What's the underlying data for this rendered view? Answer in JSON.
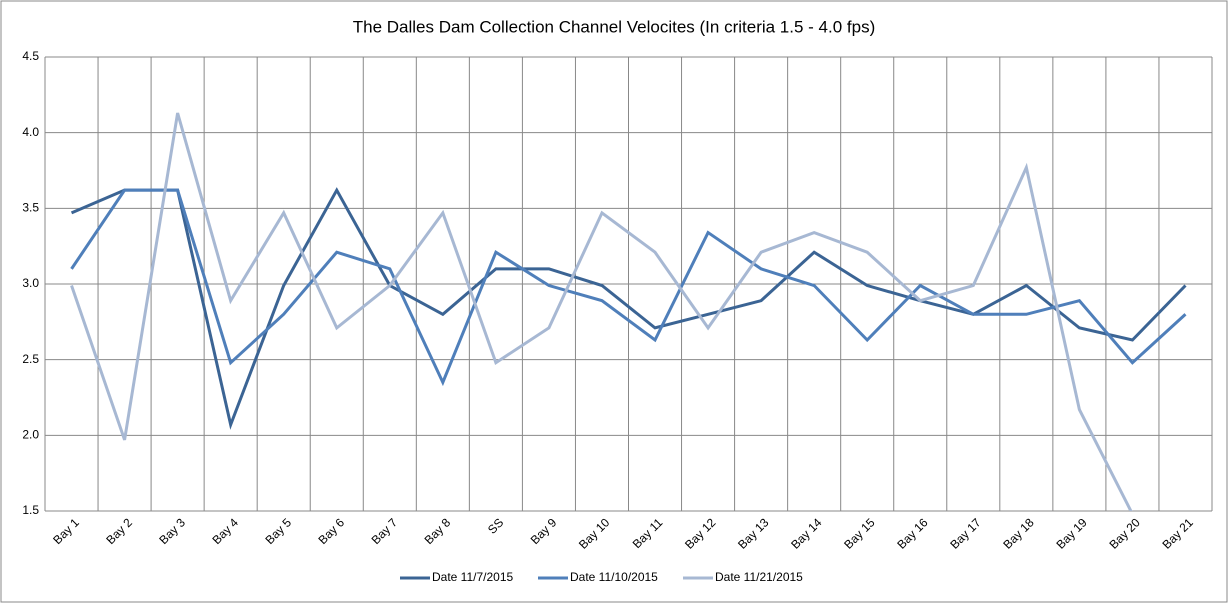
{
  "chart_data": {
    "type": "line",
    "title": "The Dalles Dam Collection Channel Velocites  (In criteria 1.5 - 4.0 fps)",
    "categories": [
      "Bay 1",
      "Bay 2",
      "Bay 3",
      "Bay 4",
      "Bay 5",
      "Bay 6",
      "Bay 7",
      "Bay 8",
      "SS",
      "Bay 9",
      "Bay 10",
      "Bay 11",
      "Bay 12",
      "Bay 13",
      "Bay 14",
      "Bay 15",
      "Bay 16",
      "Bay 17",
      "Bay 18",
      "Bay 19",
      "Bay 20",
      "Bay 21"
    ],
    "series": [
      {
        "name": "Date 11/7/2015",
        "color": "#3b6494",
        "values": [
          3.47,
          3.62,
          3.62,
          2.07,
          2.99,
          3.62,
          2.99,
          2.8,
          3.1,
          3.1,
          2.99,
          2.71,
          2.8,
          2.89,
          3.21,
          2.99,
          2.89,
          2.8,
          2.99,
          2.71,
          2.63,
          2.99
        ]
      },
      {
        "name": "Date 11/10/2015",
        "color": "#4f7fba",
        "values": [
          3.1,
          3.62,
          3.62,
          2.48,
          2.8,
          3.21,
          3.1,
          2.35,
          3.21,
          2.99,
          2.89,
          2.63,
          3.34,
          3.1,
          2.99,
          2.63,
          2.99,
          2.8,
          2.8,
          2.89,
          2.48,
          2.8
        ]
      },
      {
        "name": "Date 11/21/2015",
        "color": "#a7b8d3",
        "values": [
          2.99,
          1.97,
          4.13,
          2.89,
          3.47,
          2.71,
          2.99,
          3.47,
          2.48,
          2.71,
          3.47,
          3.21,
          2.71,
          3.21,
          3.34,
          3.21,
          2.89,
          2.99,
          3.77,
          2.17,
          1.48,
          null
        ]
      }
    ],
    "ylim": [
      1.5,
      4.5
    ],
    "yticks": [
      1.5,
      {
        "value": 2,
        "label": "2.0"
      },
      2.5,
      {
        "value": 3,
        "label": "3.0"
      },
      3.5,
      {
        "value": 4,
        "label": "4.0"
      },
      4.5
    ],
    "grid": true,
    "legend": "bottom"
  }
}
